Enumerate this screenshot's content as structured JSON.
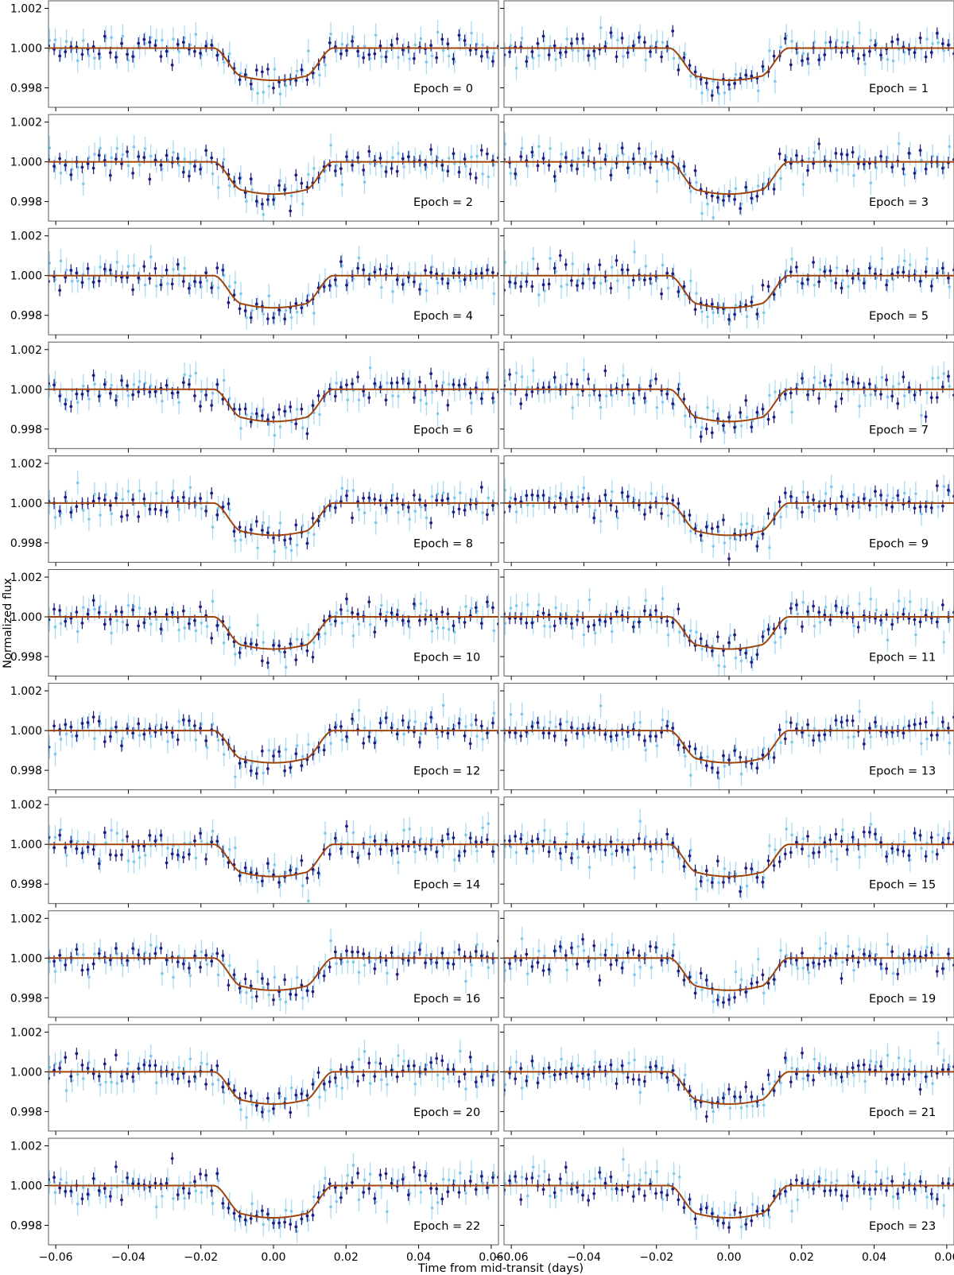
{
  "figure": {
    "ylabel": "Normalized flux",
    "xlabel": "Time from mid-transit (days)"
  },
  "chart_data": {
    "type": "scatter",
    "layout": "grid 12 rows x 2 columns of light-curve panels, shared axes",
    "xlabel": "Time from mid-transit (days)",
    "ylabel": "Normalized flux",
    "xlim": [
      -0.062,
      0.062
    ],
    "ylim": [
      0.99702,
      1.00238
    ],
    "x_ticks": [
      -0.06,
      -0.04,
      -0.02,
      0.0,
      0.02,
      0.04,
      0.06
    ],
    "x_tick_labels": [
      "−0.06",
      "−0.04",
      "−0.02",
      "0.00",
      "0.02",
      "0.04",
      "0.06"
    ],
    "y_ticks": [
      0.998,
      1.0,
      1.002
    ],
    "y_tick_labels": [
      "0.998",
      "1.000",
      "1.002"
    ],
    "grid": false,
    "legend": "none",
    "colors": {
      "model": "#a0440c",
      "binned_points": "#1c1c80",
      "binned_errorbars": "#1c1c80",
      "raw_points": "#7fc8ec",
      "raw_errorbars": "#a8dcf4",
      "frame": "#5a5a5a"
    },
    "model": {
      "baseline": 1.0,
      "depth": 0.00162,
      "contact_times_days": [
        -0.0165,
        -0.0085,
        0.0085,
        0.0165
      ]
    },
    "point_sampling": {
      "cadence_days": 0.00155,
      "scatter_1sigma": 0.0004,
      "errorbar_halfwidth_binned": 0.0003,
      "errorbar_halfwidth_raw": 0.0006
    },
    "panels": [
      {
        "label": "Epoch = 0"
      },
      {
        "label": "Epoch = 1"
      },
      {
        "label": "Epoch = 2"
      },
      {
        "label": "Epoch = 3"
      },
      {
        "label": "Epoch = 4"
      },
      {
        "label": "Epoch = 5"
      },
      {
        "label": "Epoch = 6"
      },
      {
        "label": "Epoch = 7"
      },
      {
        "label": "Epoch = 8"
      },
      {
        "label": "Epoch = 9"
      },
      {
        "label": "Epoch = 10"
      },
      {
        "label": "Epoch = 11"
      },
      {
        "label": "Epoch = 12"
      },
      {
        "label": "Epoch = 13"
      },
      {
        "label": "Epoch = 14"
      },
      {
        "label": "Epoch = 15"
      },
      {
        "label": "Epoch = 16"
      },
      {
        "label": "Epoch = 19"
      },
      {
        "label": "Epoch = 20"
      },
      {
        "label": "Epoch = 21"
      },
      {
        "label": "Epoch = 22"
      },
      {
        "label": "Epoch = 23"
      }
    ]
  }
}
